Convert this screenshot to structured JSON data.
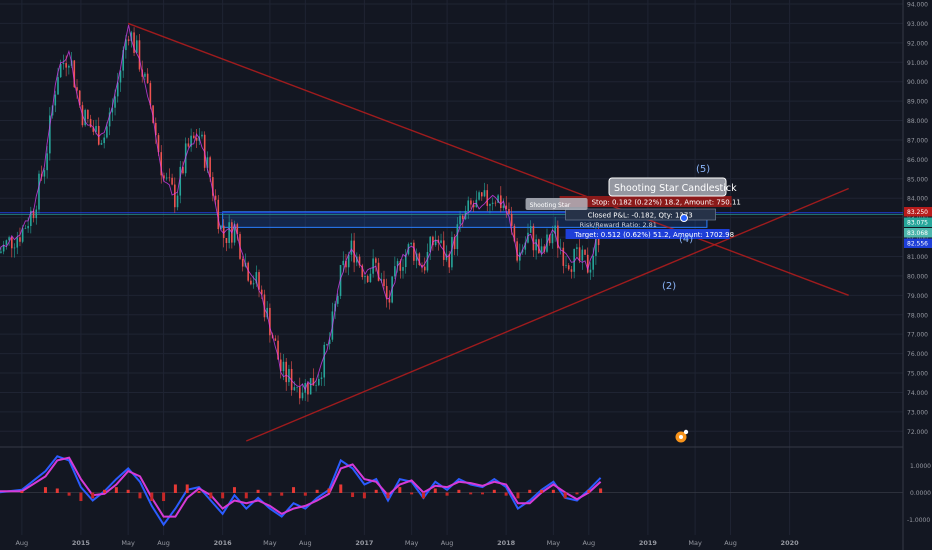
{
  "chart_data": [
    {
      "type": "candlestick",
      "title": "",
      "price_axis_ticks": [
        "94.000",
        "93.000",
        "92.000",
        "91.000",
        "90.000",
        "89.000",
        "88.000",
        "87.000",
        "86.000",
        "85.000",
        "84.000",
        "83.000",
        "82.000",
        "81.000",
        "80.000",
        "79.000",
        "78.000",
        "77.000",
        "76.000",
        "75.000",
        "74.000",
        "73.000",
        "72.000"
      ],
      "price_range": [
        71.5,
        94.0
      ],
      "time_axis_labels": [
        "Aug",
        "2015",
        "May",
        "Aug",
        "2016",
        "May",
        "Aug",
        "2017",
        "May",
        "Aug",
        "2018",
        "May",
        "Aug",
        "2019",
        "May",
        "Aug",
        "2020"
      ],
      "grid": true,
      "price_tags": [
        {
          "label": "83.250",
          "value": 83.25,
          "color": "#b71c1c"
        },
        {
          "label": "83.075",
          "value": 83.075,
          "color": "#26a69a"
        },
        {
          "label": "83.068",
          "value": 83.068,
          "color": "#4db6ac"
        },
        {
          "label": "82.556",
          "value": 82.556,
          "color": "#1e3fd8"
        }
      ],
      "close_path": [
        [
          "2014-06",
          81.2
        ],
        [
          "2014-07",
          81.8
        ],
        [
          "2014-08",
          82.3
        ],
        [
          "2014-09",
          83.5
        ],
        [
          "2014-10",
          86.0
        ],
        [
          "2014-11",
          90.5
        ],
        [
          "2014-12",
          91.5
        ],
        [
          "2015-01",
          88.5
        ],
        [
          "2015-02",
          87.5
        ],
        [
          "2015-03",
          87.2
        ],
        [
          "2015-04",
          89.5
        ],
        [
          "2015-05",
          92.8
        ],
        [
          "2015-06",
          91.0
        ],
        [
          "2015-07",
          88.5
        ],
        [
          "2015-08",
          85.0
        ],
        [
          "2015-09",
          84.0
        ],
        [
          "2015-10",
          86.5
        ],
        [
          "2015-11",
          87.3
        ],
        [
          "2015-12",
          85.0
        ],
        [
          "2016-01",
          82.0
        ],
        [
          "2016-02",
          82.5
        ],
        [
          "2016-03",
          80.5
        ],
        [
          "2016-04",
          79.5
        ],
        [
          "2016-05",
          77.5
        ],
        [
          "2016-06",
          75.0
        ],
        [
          "2016-07",
          74.5
        ],
        [
          "2016-08",
          74.3
        ],
        [
          "2016-09",
          74.8
        ],
        [
          "2016-10",
          76.5
        ],
        [
          "2016-11",
          80.0
        ],
        [
          "2016-12",
          81.5
        ],
        [
          "2017-01",
          80.2
        ],
        [
          "2017-02",
          80.5
        ],
        [
          "2017-03",
          78.5
        ],
        [
          "2017-04",
          80.8
        ],
        [
          "2017-05",
          81.5
        ],
        [
          "2017-06",
          80.5
        ],
        [
          "2017-07",
          82.0
        ],
        [
          "2017-08",
          80.8
        ],
        [
          "2017-09",
          82.5
        ],
        [
          "2017-10",
          83.5
        ],
        [
          "2017-11",
          83.7
        ],
        [
          "2017-12",
          84.2
        ],
        [
          "2018-01",
          83.5
        ],
        [
          "2018-02",
          81.0
        ],
        [
          "2018-03",
          82.2
        ],
        [
          "2018-04",
          81.0
        ],
        [
          "2018-05",
          82.3
        ],
        [
          "2018-06",
          81.0
        ],
        [
          "2018-07",
          80.8
        ],
        [
          "2018-08",
          80.5
        ],
        [
          "2018-09",
          82.5
        ]
      ],
      "trendlines": [
        {
          "name": "resistance",
          "from": [
            "2015-05",
            93.0
          ],
          "to": [
            "2020-06",
            79.0
          ],
          "color": "#b71c1c"
        },
        {
          "name": "support",
          "from": [
            "2016-03",
            71.5
          ],
          "to": [
            "2020-06",
            84.5
          ],
          "color": "#b71c1c"
        }
      ],
      "zone": {
        "low": 82.5,
        "high": 83.3,
        "from": "2016-01",
        "to": "2019-06"
      },
      "annotations": [
        {
          "text": "Shooting Star Candlestick",
          "at": [
            "2018-08",
            84.4
          ]
        },
        {
          "text": "(5)",
          "at": [
            "2018-08",
            85.3
          ]
        },
        {
          "text": "(4)",
          "at": [
            "2018-08",
            82.3
          ]
        },
        {
          "text": "(2)",
          "at": [
            "2018-08",
            79.5
          ]
        }
      ],
      "trade_labels": {
        "stop": "Stop: 0.182 (0.22%) 18.2, Amount: 750.11",
        "closed": "Closed P&L: -0.182, Qty: 1373",
        "ratio": "Risk/Reward Ratio: 2.81",
        "target": "Target: 0.512 (0.62%) 51.2, Amount: 1702.98",
        "mini_label": "Shooting Star"
      }
    },
    {
      "type": "line",
      "oscillator_ticks": [
        "1.0000",
        "0.0000",
        "-1.0000"
      ],
      "oscillator_range": [
        -1.4,
        1.4
      ],
      "series": [
        {
          "color": "#2b5cff",
          "values": [
            [
              "2014-06",
              0.0
            ],
            [
              "2014-08",
              0.1
            ],
            [
              "2014-10",
              0.8
            ],
            [
              "2014-11",
              1.35
            ],
            [
              "2014-12",
              1.2
            ],
            [
              "2015-01",
              0.2
            ],
            [
              "2015-02",
              -0.3
            ],
            [
              "2015-03",
              0.05
            ],
            [
              "2015-04",
              0.5
            ],
            [
              "2015-05",
              0.9
            ],
            [
              "2015-06",
              0.4
            ],
            [
              "2015-07",
              -0.5
            ],
            [
              "2015-08",
              -1.2
            ],
            [
              "2015-09",
              -0.6
            ],
            [
              "2015-10",
              0.1
            ],
            [
              "2015-11",
              0.2
            ],
            [
              "2015-12",
              -0.3
            ],
            [
              "2016-01",
              -0.8
            ],
            [
              "2016-02",
              -0.1
            ],
            [
              "2016-03",
              -0.6
            ],
            [
              "2016-04",
              -0.2
            ],
            [
              "2016-05",
              -0.6
            ],
            [
              "2016-06",
              -0.9
            ],
            [
              "2016-07",
              -0.4
            ],
            [
              "2016-08",
              -0.6
            ],
            [
              "2016-09",
              -0.2
            ],
            [
              "2016-10",
              0.1
            ],
            [
              "2016-11",
              1.2
            ],
            [
              "2016-12",
              0.9
            ],
            [
              "2017-01",
              0.3
            ],
            [
              "2017-02",
              0.5
            ],
            [
              "2017-03",
              -0.3
            ],
            [
              "2017-04",
              0.5
            ],
            [
              "2017-05",
              0.4
            ],
            [
              "2017-06",
              -0.2
            ],
            [
              "2017-07",
              0.4
            ],
            [
              "2017-08",
              0.1
            ],
            [
              "2017-09",
              0.5
            ],
            [
              "2017-10",
              0.3
            ],
            [
              "2017-11",
              0.2
            ],
            [
              "2017-12",
              0.5
            ],
            [
              "2018-01",
              0.2
            ],
            [
              "2018-02",
              -0.6
            ],
            [
              "2018-03",
              -0.3
            ],
            [
              "2018-04",
              0.1
            ],
            [
              "2018-05",
              0.4
            ],
            [
              "2018-06",
              -0.2
            ],
            [
              "2018-07",
              -0.3
            ],
            [
              "2018-08",
              0.1
            ],
            [
              "2018-09",
              0.55
            ]
          ]
        },
        {
          "color": "#d63ad6",
          "values": [
            [
              "2014-06",
              0.05
            ],
            [
              "2014-08",
              0.05
            ],
            [
              "2014-10",
              0.6
            ],
            [
              "2014-11",
              1.2
            ],
            [
              "2014-12",
              1.3
            ],
            [
              "2015-01",
              0.5
            ],
            [
              "2015-02",
              -0.1
            ],
            [
              "2015-03",
              -0.05
            ],
            [
              "2015-04",
              0.3
            ],
            [
              "2015-05",
              0.8
            ],
            [
              "2015-06",
              0.6
            ],
            [
              "2015-07",
              -0.2
            ],
            [
              "2015-08",
              -0.9
            ],
            [
              "2015-09",
              -0.9
            ],
            [
              "2015-10",
              -0.2
            ],
            [
              "2015-11",
              0.15
            ],
            [
              "2015-12",
              -0.1
            ],
            [
              "2016-01",
              -0.6
            ],
            [
              "2016-02",
              -0.3
            ],
            [
              "2016-03",
              -0.4
            ],
            [
              "2016-04",
              -0.3
            ],
            [
              "2016-05",
              -0.5
            ],
            [
              "2016-06",
              -0.8
            ],
            [
              "2016-07",
              -0.6
            ],
            [
              "2016-08",
              -0.5
            ],
            [
              "2016-09",
              -0.3
            ],
            [
              "2016-10",
              -0.05
            ],
            [
              "2016-11",
              0.9
            ],
            [
              "2016-12",
              1.05
            ],
            [
              "2017-01",
              0.5
            ],
            [
              "2017-02",
              0.4
            ],
            [
              "2017-03",
              -0.1
            ],
            [
              "2017-04",
              0.3
            ],
            [
              "2017-05",
              0.45
            ],
            [
              "2017-06",
              0.0
            ],
            [
              "2017-07",
              0.25
            ],
            [
              "2017-08",
              0.2
            ],
            [
              "2017-09",
              0.4
            ],
            [
              "2017-10",
              0.35
            ],
            [
              "2017-11",
              0.25
            ],
            [
              "2017-12",
              0.4
            ],
            [
              "2018-01",
              0.3
            ],
            [
              "2018-02",
              -0.4
            ],
            [
              "2018-03",
              -0.4
            ],
            [
              "2018-04",
              0.0
            ],
            [
              "2018-05",
              0.3
            ],
            [
              "2018-06",
              0.0
            ],
            [
              "2018-07",
              -0.25
            ],
            [
              "2018-08",
              0.0
            ],
            [
              "2018-09",
              0.4
            ]
          ]
        }
      ]
    }
  ]
}
